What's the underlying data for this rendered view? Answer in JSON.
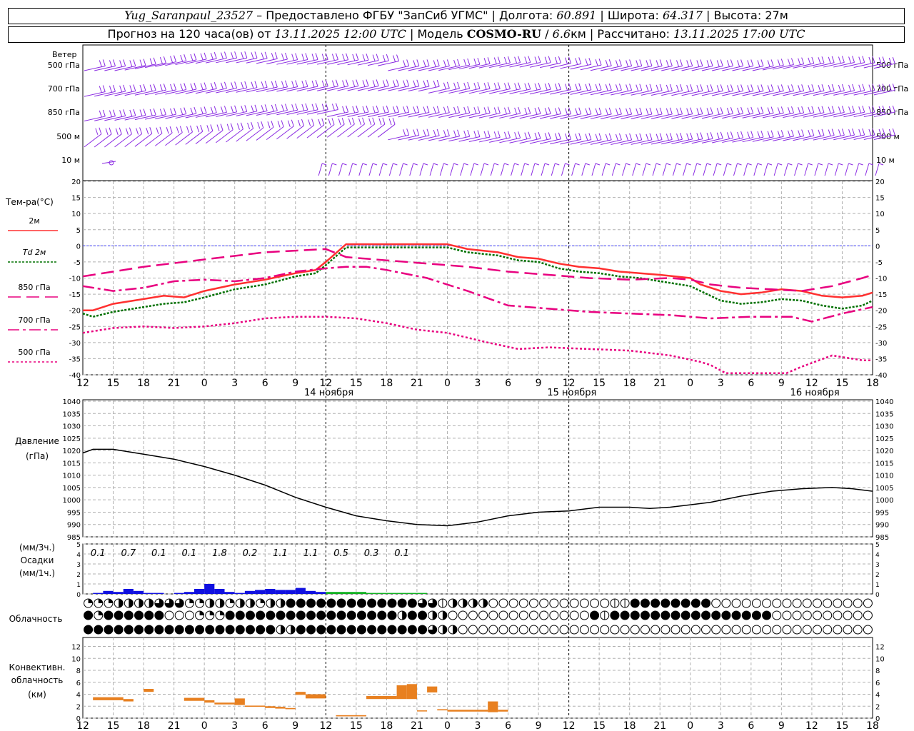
{
  "header": {
    "station": "Yug_Saranpaul_23527",
    "provider": "– Предоставлено ФГБУ \"ЗапСиб УГМС\"",
    "lon_label": "Долгота:",
    "lon": "60.891",
    "lat_label": "Широта:",
    "lat": "64.317",
    "alt_label": "Высота:",
    "alt": "27м",
    "forecast_label": "Прогноз на 120 часа(ов) от",
    "forecast_start": "13.11.2025 12:00 UTC",
    "model_label": "Модель",
    "model": "COSMO-RU",
    "resolution": "6.6",
    "resolution_unit": "км",
    "calc_label": "Рассчитано:",
    "calc_time": "13.11.2025 17:00 UTC"
  },
  "colors": {
    "wind": "#8a2be2",
    "t2m": "#ff3030",
    "td2m": "#007000",
    "upper": "#e8007f",
    "pressure": "#000000",
    "precip_rain": "#1010e0",
    "precip_snow": "#10b020",
    "conv": "#e88020",
    "zero_line": "#4040ff",
    "grid": "#b0b0b0",
    "day_sep": "#000000"
  },
  "chart_data": [
    {
      "type": "barbs",
      "title": "Ветер",
      "levels": [
        "500 гПа",
        "700 гПа",
        "850 гПа",
        "500 м",
        "10  м"
      ]
    },
    {
      "type": "line",
      "ylabel": "Тем-ра(°C)",
      "ylim": [
        -40,
        20
      ],
      "yticks": [
        20,
        15,
        10,
        5,
        0,
        -5,
        -10,
        -15,
        -20,
        -25,
        -30,
        -35,
        -40
      ],
      "xlim": [
        0,
        78
      ],
      "x_ticks": [
        "12",
        "15",
        "18",
        "21",
        "0",
        "3",
        "6",
        "9",
        "12",
        "15",
        "18",
        "21",
        "0",
        "3",
        "6",
        "9",
        "12",
        "15",
        "18",
        "21",
        "0",
        "3",
        "6",
        "9",
        "12",
        "15",
        "18"
      ],
      "day_labels": [
        "14 ноября",
        "15 ноября",
        "16 ноября"
      ],
      "series": [
        {
          "name": "2м",
          "style": "solid",
          "points": [
            [
              0,
              -20
            ],
            [
              1,
              -20
            ],
            [
              3,
              -18
            ],
            [
              6,
              -16.5
            ],
            [
              8,
              -15.5
            ],
            [
              10,
              -16
            ],
            [
              12,
              -14
            ],
            [
              15,
              -12
            ],
            [
              18,
              -10.5
            ],
            [
              21,
              -8.5
            ],
            [
              23,
              -7.5
            ],
            [
              24,
              -5
            ],
            [
              26,
              0.5
            ],
            [
              30,
              0.5
            ],
            [
              36,
              0.5
            ],
            [
              38,
              -1
            ],
            [
              41,
              -2
            ],
            [
              43,
              -3.5
            ],
            [
              45,
              -4
            ],
            [
              47,
              -5.5
            ],
            [
              49,
              -6.5
            ],
            [
              51,
              -7
            ],
            [
              53,
              -8
            ],
            [
              55,
              -8.5
            ],
            [
              57,
              -9
            ],
            [
              60,
              -10
            ],
            [
              61,
              -12
            ],
            [
              63,
              -14
            ],
            [
              65,
              -15
            ],
            [
              67,
              -14.5
            ],
            [
              69,
              -13.5
            ],
            [
              71,
              -14
            ],
            [
              73,
              -15.5
            ],
            [
              75,
              -16
            ],
            [
              77,
              -15.5
            ],
            [
              78,
              -14.5
            ]
          ]
        },
        {
          "name": "Td  2м",
          "style": "dotted",
          "points": [
            [
              0,
              -21
            ],
            [
              1,
              -22
            ],
            [
              3,
              -20.5
            ],
            [
              6,
              -19
            ],
            [
              8,
              -18
            ],
            [
              10,
              -17.5
            ],
            [
              12,
              -16
            ],
            [
              15,
              -13.5
            ],
            [
              18,
              -12
            ],
            [
              21,
              -9.5
            ],
            [
              23,
              -8.5
            ],
            [
              24,
              -6
            ],
            [
              26,
              -0.5
            ],
            [
              30,
              -0.5
            ],
            [
              36,
              -0.5
            ],
            [
              38,
              -2
            ],
            [
              41,
              -3
            ],
            [
              43,
              -4.5
            ],
            [
              45,
              -5
            ],
            [
              47,
              -7
            ],
            [
              49,
              -8
            ],
            [
              51,
              -8.5
            ],
            [
              53,
              -9.5
            ],
            [
              55,
              -10
            ],
            [
              57,
              -11
            ],
            [
              60,
              -12.5
            ],
            [
              61,
              -14
            ],
            [
              63,
              -17
            ],
            [
              65,
              -18
            ],
            [
              67,
              -17.5
            ],
            [
              69,
              -16.5
            ],
            [
              71,
              -17
            ],
            [
              73,
              -18.5
            ],
            [
              75,
              -19.5
            ],
            [
              77,
              -18.5
            ],
            [
              78,
              -17
            ]
          ]
        },
        {
          "name": "850 гПа",
          "style": "long-dash",
          "points": [
            [
              0,
              -9.5
            ],
            [
              3,
              -8
            ],
            [
              6,
              -6.5
            ],
            [
              10,
              -5
            ],
            [
              14,
              -3.5
            ],
            [
              18,
              -2
            ],
            [
              21,
              -1.5
            ],
            [
              24,
              -1
            ],
            [
              26,
              -3.5
            ],
            [
              30,
              -4.5
            ],
            [
              34,
              -5.5
            ],
            [
              38,
              -6.5
            ],
            [
              42,
              -8
            ],
            [
              46,
              -9
            ],
            [
              50,
              -10
            ],
            [
              54,
              -10.5
            ],
            [
              58,
              -10
            ],
            [
              60,
              -10.5
            ],
            [
              62,
              -12
            ],
            [
              65,
              -13
            ],
            [
              68,
              -13.5
            ],
            [
              71,
              -14
            ],
            [
              74,
              -12.5
            ],
            [
              77,
              -10
            ],
            [
              78,
              -9
            ]
          ]
        },
        {
          "name": "700 гПа",
          "style": "dash-dot",
          "points": [
            [
              0,
              -12.5
            ],
            [
              3,
              -14
            ],
            [
              6,
              -13
            ],
            [
              9,
              -11
            ],
            [
              12,
              -10.5
            ],
            [
              15,
              -11
            ],
            [
              18,
              -10
            ],
            [
              21,
              -8
            ],
            [
              24,
              -7
            ],
            [
              26,
              -6.5
            ],
            [
              28,
              -6.5
            ],
            [
              30,
              -7.5
            ],
            [
              34,
              -10
            ],
            [
              38,
              -14
            ],
            [
              42,
              -18.5
            ],
            [
              46,
              -19.5
            ],
            [
              50,
              -20.5
            ],
            [
              54,
              -21
            ],
            [
              58,
              -21.5
            ],
            [
              62,
              -22.5
            ],
            [
              66,
              -22
            ],
            [
              70,
              -22
            ],
            [
              72,
              -23.5
            ],
            [
              75,
              -21
            ],
            [
              78,
              -19
            ]
          ]
        },
        {
          "name": "500 гПа",
          "style": "short-dash",
          "points": [
            [
              0,
              -27
            ],
            [
              3,
              -25.5
            ],
            [
              6,
              -25
            ],
            [
              9,
              -25.5
            ],
            [
              12,
              -25
            ],
            [
              15,
              -24
            ],
            [
              18,
              -22.5
            ],
            [
              21,
              -22
            ],
            [
              24,
              -22
            ],
            [
              27,
              -22.5
            ],
            [
              30,
              -24
            ],
            [
              33,
              -26
            ],
            [
              36,
              -27
            ],
            [
              40,
              -30
            ],
            [
              43,
              -32
            ],
            [
              46,
              -31.5
            ],
            [
              50,
              -32
            ],
            [
              54,
              -32.5
            ],
            [
              58,
              -34
            ],
            [
              61,
              -36
            ],
            [
              62,
              -37
            ],
            [
              63.5,
              -39.5
            ],
            [
              69.5,
              -39.5
            ],
            [
              71,
              -37.5
            ],
            [
              74,
              -34
            ],
            [
              75,
              -34.5
            ],
            [
              77,
              -35.5
            ],
            [
              78,
              -35.5
            ]
          ]
        }
      ]
    },
    {
      "type": "line",
      "ylabel": "Давление",
      "yunit": "(гПа)",
      "ylim": [
        985,
        1040
      ],
      "yticks": [
        1040,
        1035,
        1030,
        1025,
        1020,
        1015,
        1010,
        1005,
        1000,
        995,
        990,
        985
      ],
      "series": [
        {
          "name": "Давление",
          "points": [
            [
              0,
              1019
            ],
            [
              1,
              1020.5
            ],
            [
              3,
              1020.5
            ],
            [
              6,
              1018.5
            ],
            [
              9,
              1016.5
            ],
            [
              12,
              1013.5
            ],
            [
              15,
              1010
            ],
            [
              18,
              1006
            ],
            [
              21,
              1001
            ],
            [
              24,
              997
            ],
            [
              27,
              993.5
            ],
            [
              30,
              991.5
            ],
            [
              33,
              990
            ],
            [
              36,
              989.5
            ],
            [
              39,
              991
            ],
            [
              42,
              993.5
            ],
            [
              45,
              995
            ],
            [
              48,
              995.5
            ],
            [
              51,
              997
            ],
            [
              54,
              997
            ],
            [
              56,
              996.5
            ],
            [
              58,
              997
            ],
            [
              60,
              998
            ],
            [
              62,
              999
            ],
            [
              65,
              1001.5
            ],
            [
              68,
              1003.5
            ],
            [
              71,
              1004.5
            ],
            [
              74,
              1005
            ],
            [
              76,
              1004.5
            ],
            [
              78,
              1003.5
            ]
          ]
        }
      ]
    },
    {
      "type": "bar",
      "ylabel_top": "(мм/3ч.)",
      "ylabel": "Осадки",
      "yunit": "(мм/1ч.)",
      "ylim": [
        0,
        5
      ],
      "yticks": [
        5,
        4,
        3,
        2,
        1,
        0
      ],
      "totals_3h": [
        "0.1",
        "0.7",
        "0.1",
        "0.1",
        "1.8",
        "0.2",
        "1.1",
        "1.1",
        "0.5",
        "0.3",
        "0.1"
      ],
      "rain_hourly": [
        0,
        0.1,
        0.3,
        0.2,
        0.5,
        0.3,
        0.1,
        0.1,
        0,
        0.1,
        0.2,
        0.5,
        1.0,
        0.5,
        0.2,
        0.1,
        0.3,
        0.4,
        0.5,
        0.4,
        0.4,
        0.6,
        0.3,
        0.2
      ],
      "snow_hourly": [
        [
          24,
          0.2
        ],
        [
          25,
          0.2
        ],
        [
          26,
          0.2
        ],
        [
          27,
          0.2
        ],
        [
          28,
          0.1
        ],
        [
          29,
          0.1
        ],
        [
          30,
          0.1
        ],
        [
          31,
          0.1
        ],
        [
          32,
          0.1
        ],
        [
          33,
          0.1
        ]
      ]
    },
    {
      "type": "table",
      "title": "Облачность",
      "rows": [
        "qqqhhhhtttqqhhqhhqhhfffffffffffffttehhhh000000000000eeffffffff0000000000000000000000000000",
        "fqffffff000qqqfffffffffffffffffhffhh00000000000000feffffffffffffffff000000000000000000000000",
        "fffffffffffffffffffhhfffffffffffffthh0000000000000000000000000000000000000000000000000000000"
      ]
    },
    {
      "type": "bar",
      "ylabel": "Конвективн. облачность (км)",
      "ylim": [
        0,
        12
      ],
      "yticks": [
        12,
        10,
        8,
        6,
        4,
        2,
        0
      ],
      "segments": [
        [
          1,
          4,
          3,
          3.5
        ],
        [
          4,
          5,
          2.8,
          3.2
        ],
        [
          6,
          7,
          4.4,
          4.9
        ],
        [
          10,
          12,
          2.9,
          3.4
        ],
        [
          12,
          13,
          2.6,
          3
        ],
        [
          13,
          15,
          2.3,
          2.6
        ],
        [
          15,
          16,
          2.2,
          3.3
        ],
        [
          16,
          18,
          1.9,
          2.1
        ],
        [
          18,
          19,
          1.7,
          2
        ],
        [
          19,
          20,
          1.6,
          1.9
        ],
        [
          20,
          21,
          1.5,
          1.7
        ],
        [
          21,
          22,
          3.9,
          4.4
        ],
        [
          22,
          24,
          3.3,
          4
        ],
        [
          25,
          28,
          0.3,
          0.5
        ],
        [
          28,
          31,
          3.2,
          3.7
        ],
        [
          31,
          32,
          3.2,
          5.5
        ],
        [
          32,
          33,
          3.2,
          5.7
        ],
        [
          33,
          34,
          1.2,
          1.3
        ],
        [
          34,
          35,
          4.3,
          5.3
        ],
        [
          35,
          36,
          1.3,
          1.5
        ],
        [
          36,
          40,
          1.1,
          1.4
        ],
        [
          40,
          41,
          1,
          2.8
        ],
        [
          41,
          42,
          1.1,
          1.4
        ]
      ]
    }
  ]
}
